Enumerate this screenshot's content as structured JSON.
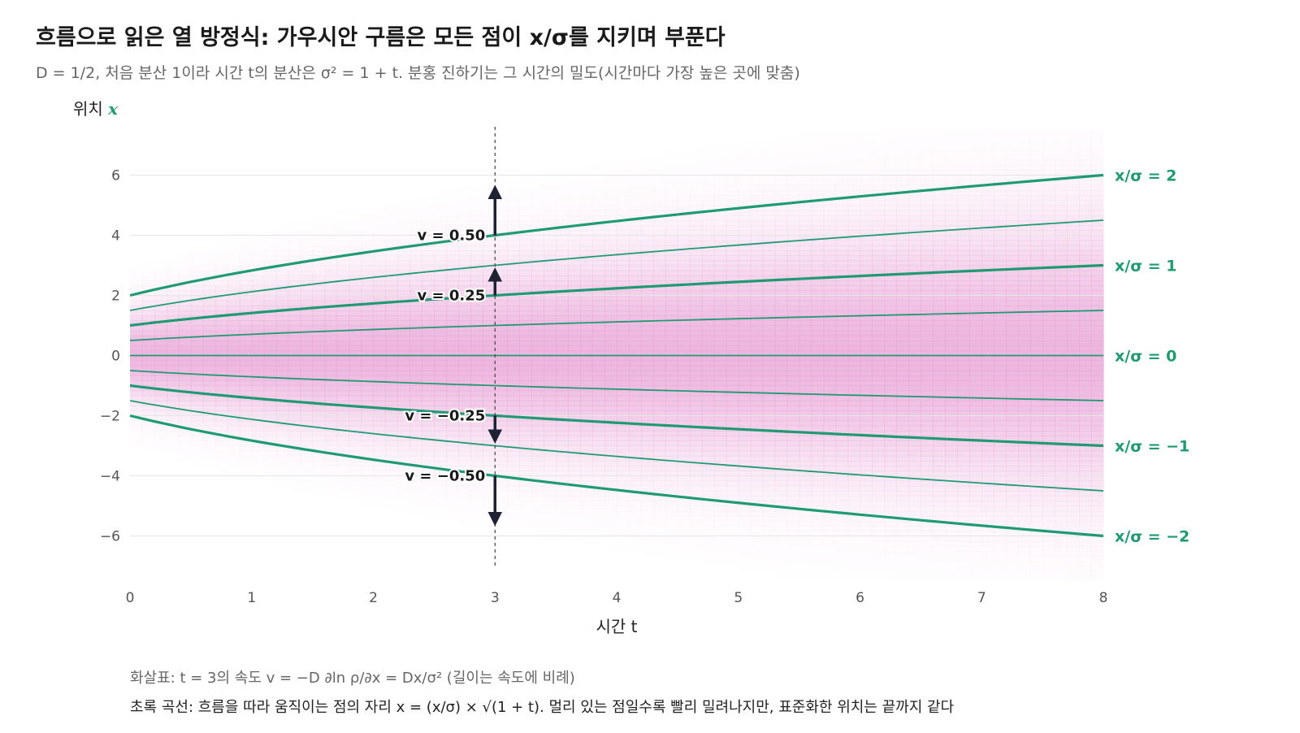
{
  "title": "흐름으로 읽은 열 방정식: 가우시안 구름은 모든 점이 x/σ를 지키며 부푼다",
  "subtitle": "D = 1/2, 처음 분산 1이라 시간 t의 분산은 σ² = 1 + t. 분홍 진하기는 그 시간의 밀도(시간마다 가장 높은 곳에 맞춤)",
  "notes": {
    "arrows": "화살표: t = 3의 속도 v = −D ∂ln ρ/∂x = Dx/σ² (길이는 속도에 비례)",
    "curves": "초록 곡선: 흐름을 따라 움직이는 점의 자리 x = (x/σ) × √(1 + t). 멀리 있는 점일수록 빨리 밀려나지만, 표준화한 위치는 끝까지 같다"
  },
  "colors": {
    "curve": "#1f9a72",
    "density": "#e8a2d6",
    "arrow": "#1e2233",
    "grid": "#e6e6e6",
    "axis_text": "#555555"
  },
  "chart_data": {
    "type": "line",
    "xlabel": "시간 t",
    "ylabel_prefix": "위치",
    "ylabel_var": "x",
    "xlim": [
      0,
      8
    ],
    "ylim": [
      -7.5,
      7.5
    ],
    "xticks": [
      0,
      1,
      2,
      3,
      4,
      5,
      6,
      7,
      8
    ],
    "yticks": [
      6,
      4,
      2,
      0,
      -2,
      -4,
      -6
    ],
    "ytick_labels": [
      "6",
      "4",
      "2",
      "0",
      "−2",
      "−4",
      "−6"
    ],
    "D": 0.5,
    "variance": "1 + t",
    "series": [
      {
        "k": 2,
        "label": "x/σ = 2",
        "bold": true
      },
      {
        "k": 1.5,
        "label": "",
        "bold": false
      },
      {
        "k": 1,
        "label": "x/σ = 1",
        "bold": true
      },
      {
        "k": 0.5,
        "label": "",
        "bold": false
      },
      {
        "k": 0,
        "label": "x/σ = 0",
        "bold": false
      },
      {
        "k": -0.5,
        "label": "",
        "bold": false
      },
      {
        "k": -1,
        "label": "x/σ = −1",
        "bold": true
      },
      {
        "k": -1.5,
        "label": "",
        "bold": false
      },
      {
        "k": -2,
        "label": "x/σ = −2",
        "bold": true
      }
    ],
    "marker_t": 3,
    "arrows": [
      {
        "x": 4,
        "v": 0.5,
        "label": "v = 0.50"
      },
      {
        "x": 2,
        "v": 0.25,
        "label": "v = 0.25"
      },
      {
        "x": -2,
        "v": -0.25,
        "label": "v = −0.25"
      },
      {
        "x": -4,
        "v": -0.5,
        "label": "v = −0.50"
      }
    ]
  }
}
